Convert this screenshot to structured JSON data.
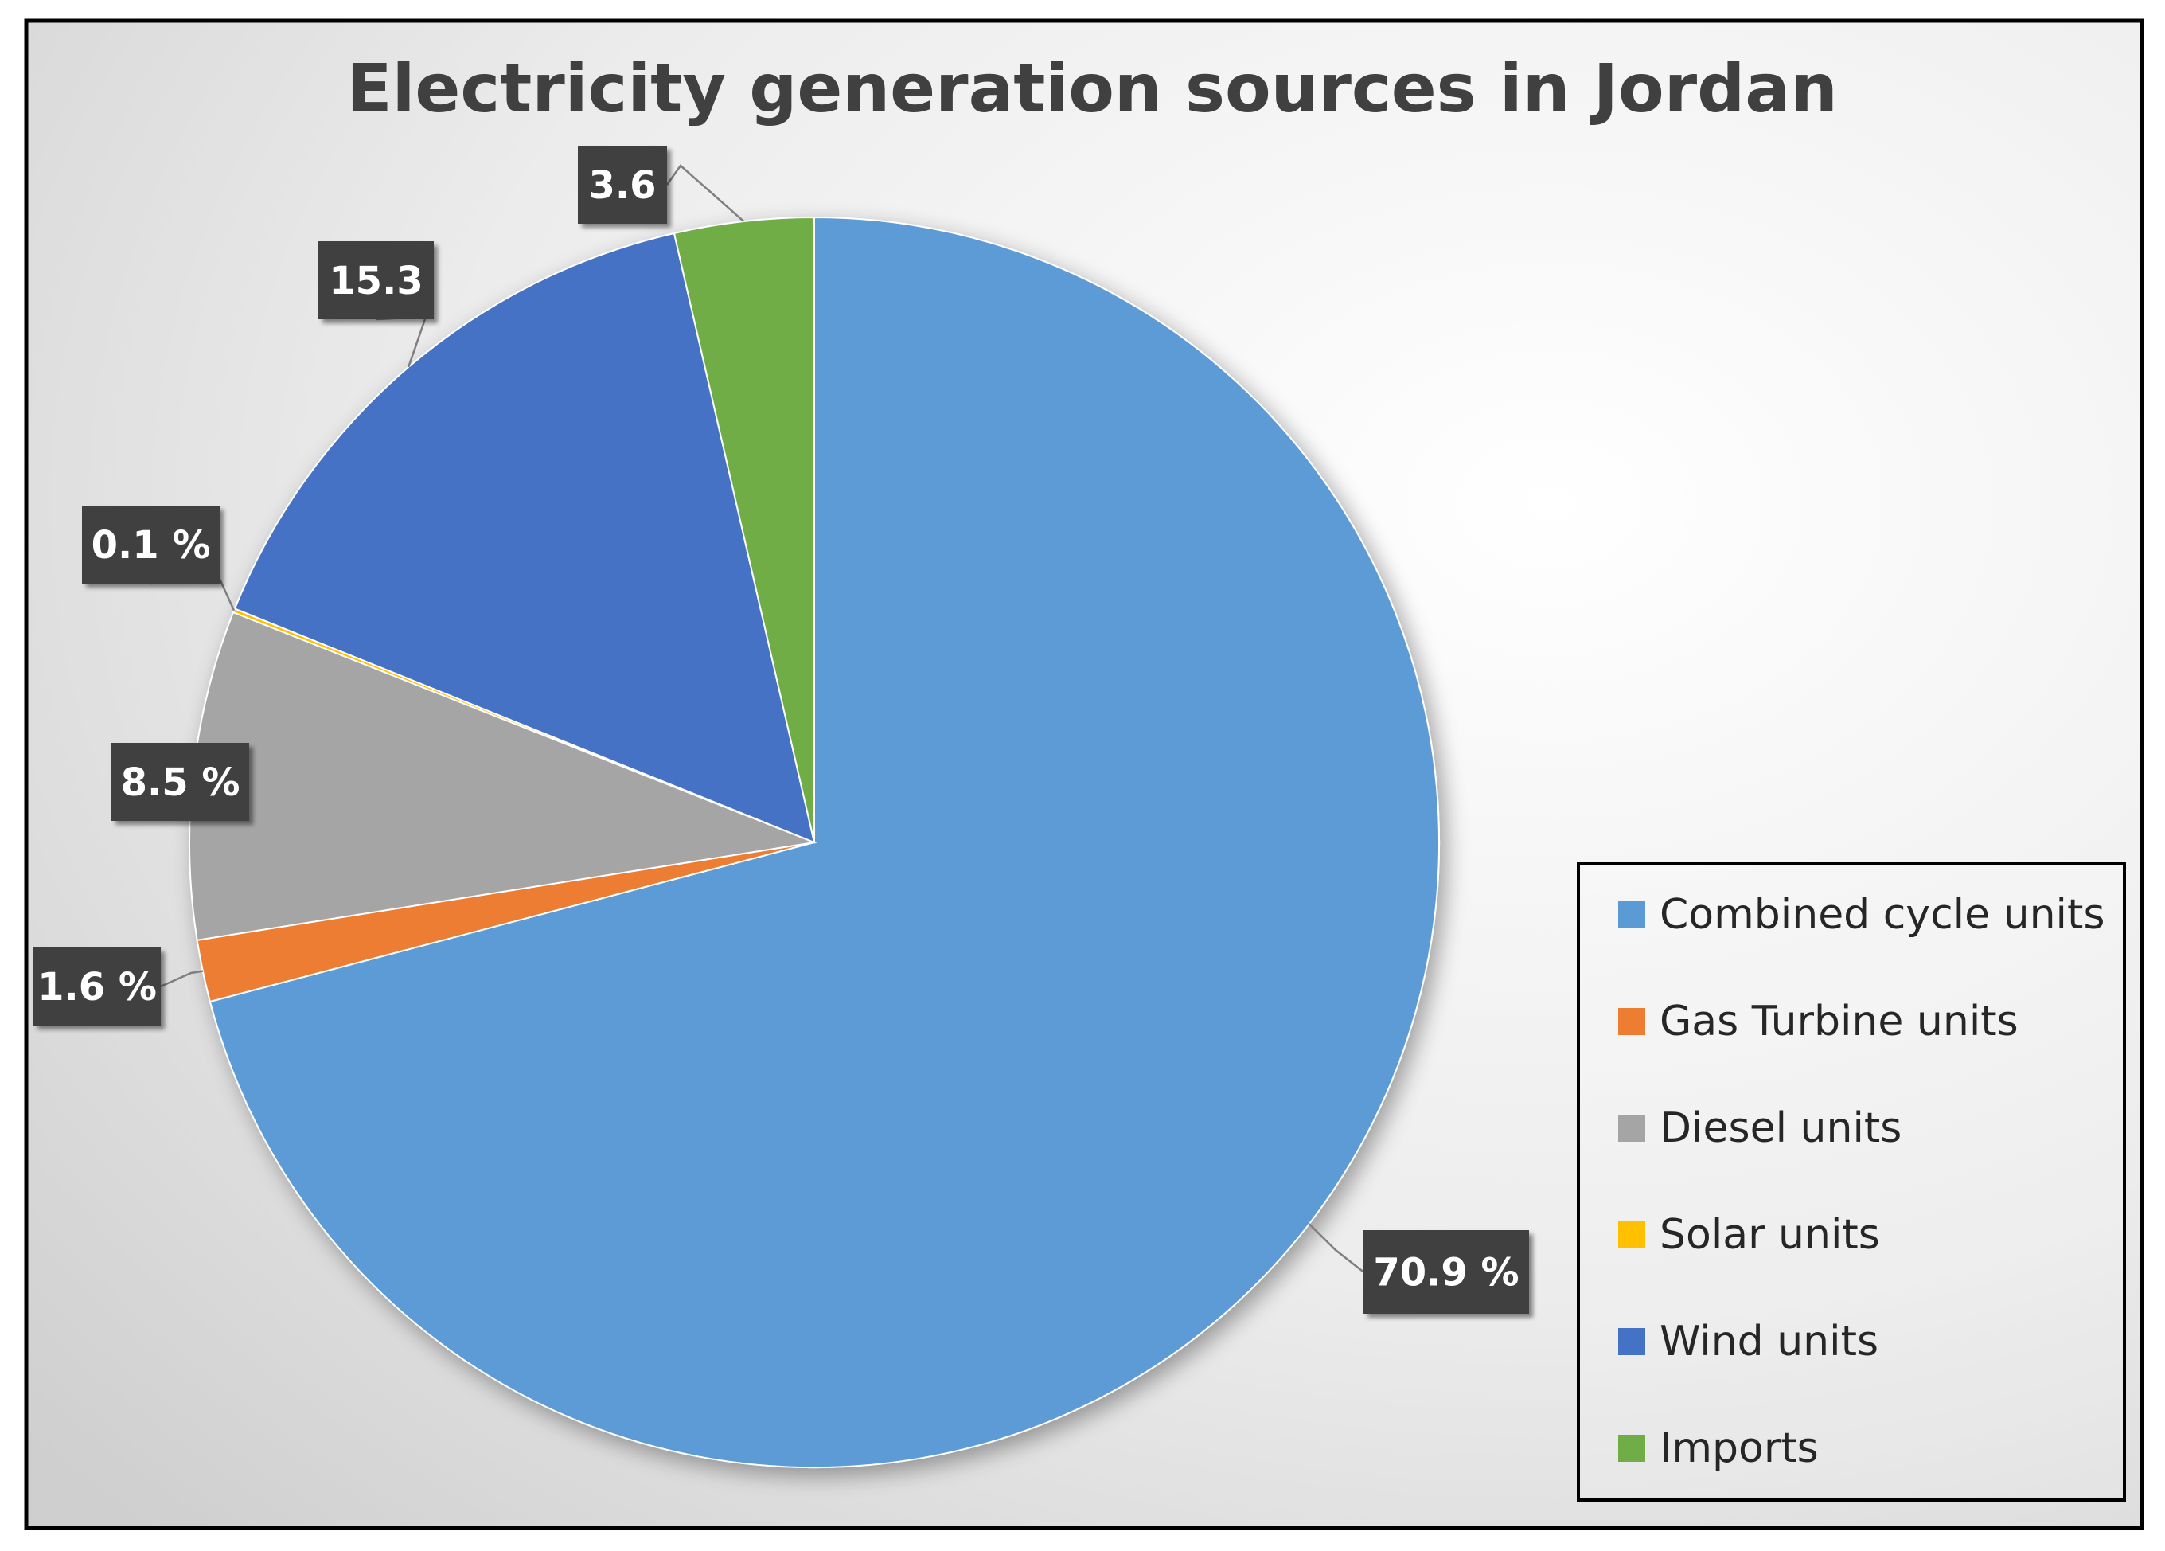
{
  "chart_data": {
    "type": "pie",
    "title": "Electricity generation sources in Jordan",
    "legend_position": "bottom-right",
    "slices": [
      {
        "name": "Combined cycle units",
        "value": 70.9,
        "label": "70.9 %",
        "color": "#5b9bd5"
      },
      {
        "name": "Gas Turbine units",
        "value": 1.6,
        "label": "1.6 %",
        "color": "#ed7d31"
      },
      {
        "name": "Diesel units",
        "value": 8.5,
        "label": "8.5 %",
        "color": "#a5a5a5"
      },
      {
        "name": "Solar units",
        "value": 0.1,
        "label": "0.1 %",
        "color": "#ffc000"
      },
      {
        "name": "Wind units",
        "value": 15.3,
        "label": "15.3",
        "color": "#4472c4"
      },
      {
        "name": "Imports",
        "value": 3.6,
        "label": "3.6",
        "color": "#70ad47"
      }
    ]
  }
}
